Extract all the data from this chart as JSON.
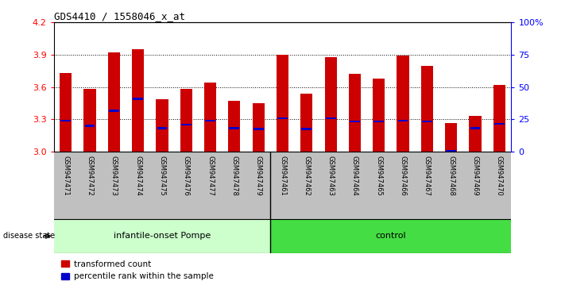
{
  "title": "GDS4410 / 1558046_x_at",
  "samples": [
    "GSM947471",
    "GSM947472",
    "GSM947473",
    "GSM947474",
    "GSM947475",
    "GSM947476",
    "GSM947477",
    "GSM947478",
    "GSM947479",
    "GSM947461",
    "GSM947462",
    "GSM947463",
    "GSM947464",
    "GSM947465",
    "GSM947466",
    "GSM947467",
    "GSM947468",
    "GSM947469",
    "GSM947470"
  ],
  "transformed_counts": [
    3.73,
    3.58,
    3.92,
    3.95,
    3.49,
    3.58,
    3.64,
    3.47,
    3.45,
    3.9,
    3.54,
    3.88,
    3.72,
    3.68,
    3.89,
    3.8,
    3.27,
    3.33,
    3.62
  ],
  "percentile_ranks": [
    3.29,
    3.24,
    3.38,
    3.49,
    3.22,
    3.25,
    3.29,
    3.22,
    3.21,
    3.31,
    3.21,
    3.31,
    3.28,
    3.28,
    3.29,
    3.28,
    3.01,
    3.22,
    3.26
  ],
  "groups": [
    "infantile-onset Pompe",
    "infantile-onset Pompe",
    "infantile-onset Pompe",
    "infantile-onset Pompe",
    "infantile-onset Pompe",
    "infantile-onset Pompe",
    "infantile-onset Pompe",
    "infantile-onset Pompe",
    "infantile-onset Pompe",
    "control",
    "control",
    "control",
    "control",
    "control",
    "control",
    "control",
    "control",
    "control",
    "control"
  ],
  "group_colors": {
    "infantile-onset Pompe": "#CCFFCC",
    "control": "#44DD44"
  },
  "bar_color": "#CC0000",
  "blue_marker_color": "#0000CC",
  "ymin": 3.0,
  "ymax": 4.2,
  "yticks": [
    3.0,
    3.3,
    3.6,
    3.9,
    4.2
  ],
  "right_yticks": [
    0,
    25,
    50,
    75,
    100
  ],
  "right_ytick_labels": [
    "0",
    "25",
    "50",
    "75",
    "100%"
  ],
  "bar_width": 0.5,
  "legend_items": [
    "transformed count",
    "percentile rank within the sample"
  ],
  "n_pompe": 9,
  "n_control": 10
}
